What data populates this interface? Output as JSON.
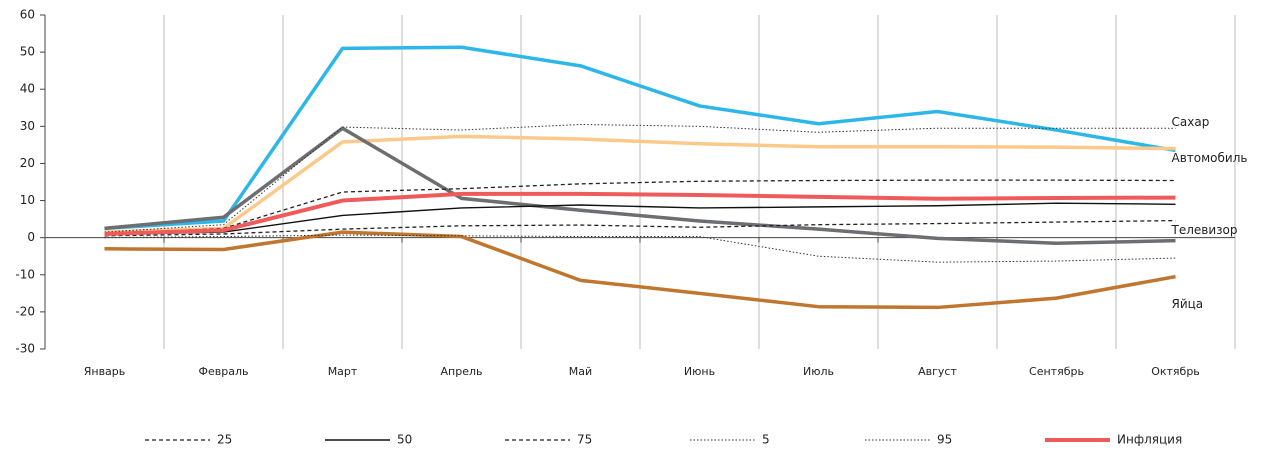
{
  "chart_data": {
    "type": "line",
    "categories": [
      "Январь",
      "Февраль",
      "Март",
      "Апрель",
      "Май",
      "Июнь",
      "Июль",
      "Август",
      "Сентябрь",
      "Октябрь"
    ],
    "ylim": [
      -30,
      60
    ],
    "yticks": [
      -30,
      -20,
      -10,
      0,
      10,
      20,
      30,
      40,
      50,
      60
    ],
    "series": [
      {
        "name": "25",
        "color": "#222222",
        "line_style": "dashed",
        "values": [
          0.5,
          1,
          2.3,
          3.2,
          3.4,
          2.8,
          3.5,
          3.8,
          4.2,
          4.6
        ]
      },
      {
        "name": "50",
        "color": "#111111",
        "line_style": "solid",
        "values": [
          0.8,
          1.5,
          6,
          8,
          8.8,
          8,
          8.3,
          8.6,
          9.3,
          9
        ]
      },
      {
        "name": "75",
        "color": "#222222",
        "line_style": "dashed",
        "values": [
          1,
          2.5,
          12.3,
          13.2,
          14.5,
          15.2,
          15.4,
          15.5,
          15.5,
          15.4
        ]
      },
      {
        "name": "5",
        "color": "#333333",
        "line_style": "dotted",
        "values": [
          0,
          0.3,
          0.7,
          0.5,
          0.3,
          0.3,
          -5,
          -6.6,
          -6.3,
          -5.5
        ]
      },
      {
        "name": "95",
        "color": "#333333",
        "line_style": "dotted",
        "values": [
          1.5,
          3.5,
          29.8,
          29,
          30.5,
          30,
          28.4,
          29.5,
          29.5,
          29.5
        ]
      },
      {
        "name": "Инфляция",
        "color": "#ef5b5b",
        "line_style": "thick",
        "values": [
          1,
          2,
          10,
          11.8,
          11.8,
          11.5,
          11,
          10.5,
          10.7,
          10.8
        ]
      }
    ],
    "labeled_series": [
      {
        "name": "Сахар",
        "color": "#2db7e8",
        "values": [
          2.5,
          4.5,
          51,
          51.3,
          46.3,
          35.5,
          30.7,
          34,
          29,
          23.5
        ]
      },
      {
        "name": "Автомобиль",
        "color": "#fcc98a",
        "values": [
          1.5,
          2.5,
          25.8,
          27.3,
          26.6,
          25.3,
          24.5,
          24.5,
          24.4,
          24
        ]
      },
      {
        "name": "Телевизор",
        "color": "#6d6e71",
        "values": [
          2.5,
          5.5,
          29.5,
          10.6,
          7.4,
          4.5,
          2.3,
          -0.2,
          -1.5,
          -0.8
        ]
      },
      {
        "name": "Яйца",
        "color": "#c0762e",
        "values": [
          -3,
          -3.2,
          1.5,
          0.3,
          -11.5,
          -15,
          -18.6,
          -18.8,
          -16.3,
          -10.5
        ]
      }
    ]
  }
}
